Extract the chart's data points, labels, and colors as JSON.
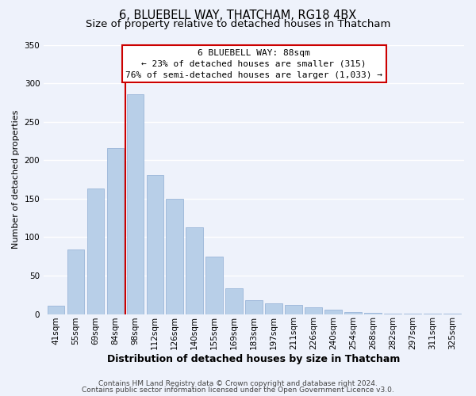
{
  "title": "6, BLUEBELL WAY, THATCHAM, RG18 4BX",
  "subtitle": "Size of property relative to detached houses in Thatcham",
  "xlabel": "Distribution of detached houses by size in Thatcham",
  "ylabel": "Number of detached properties",
  "bar_labels": [
    "41sqm",
    "55sqm",
    "69sqm",
    "84sqm",
    "98sqm",
    "112sqm",
    "126sqm",
    "140sqm",
    "155sqm",
    "169sqm",
    "183sqm",
    "197sqm",
    "211sqm",
    "226sqm",
    "240sqm",
    "254sqm",
    "268sqm",
    "282sqm",
    "297sqm",
    "311sqm",
    "325sqm"
  ],
  "bar_values": [
    11,
    84,
    163,
    216,
    286,
    181,
    150,
    113,
    75,
    34,
    18,
    14,
    12,
    9,
    6,
    3,
    2,
    1,
    0.5,
    0.5,
    0.5
  ],
  "bar_color": "#b8cfe8",
  "bar_edge_color": "#9ab5d8",
  "vline_x": 3.5,
  "vline_color": "#cc0000",
  "annotation_line1": "6 BLUEBELL WAY: 88sqm",
  "annotation_line2": "← 23% of detached houses are smaller (315)",
  "annotation_line3": "76% of semi-detached houses are larger (1,033) →",
  "annotation_box_color": "#ffffff",
  "annotation_box_edge": "#cc0000",
  "ylim": [
    0,
    350
  ],
  "footnote1": "Contains HM Land Registry data © Crown copyright and database right 2024.",
  "footnote2": "Contains public sector information licensed under the Open Government Licence v3.0.",
  "background_color": "#eef2fb",
  "grid_color": "#ffffff",
  "title_fontsize": 10.5,
  "subtitle_fontsize": 9.5,
  "xlabel_fontsize": 9,
  "ylabel_fontsize": 8,
  "tick_fontsize": 7.5,
  "footnote_fontsize": 6.5
}
